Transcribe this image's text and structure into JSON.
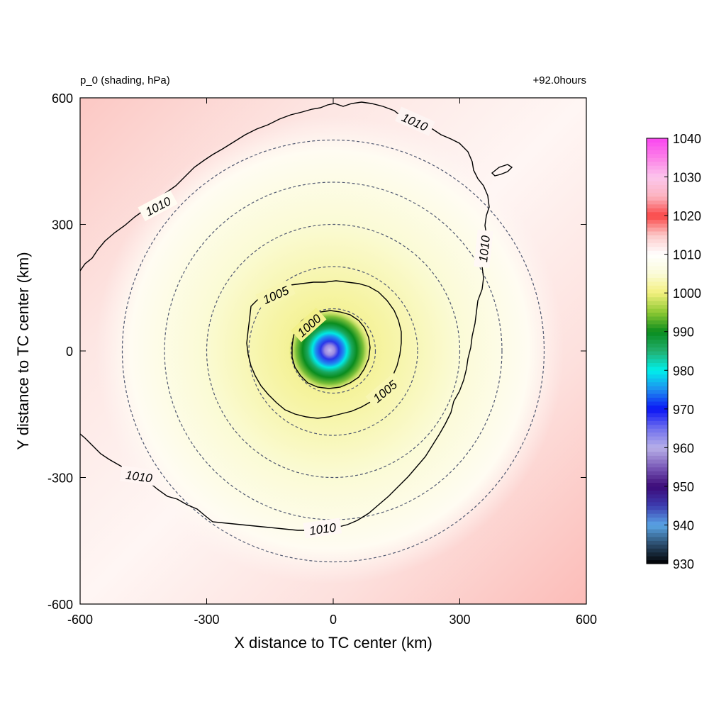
{
  "chart_data": {
    "type": "heatmap",
    "title_left": "p_0 (shading, hPa)",
    "title_right": "+92.0hours",
    "xlabel": "X distance to TC center (km)",
    "ylabel": "Y distance to TC center (km)",
    "xlim": [
      -600,
      600
    ],
    "ylim": [
      -600,
      600
    ],
    "xticks": [
      "-600",
      "-300",
      "0",
      "300",
      "600"
    ],
    "yticks": [
      "600",
      "300",
      "0",
      "-300",
      "-600"
    ],
    "colorbar": {
      "min": 930,
      "max": 1040,
      "ticks": [
        "1040",
        "1030",
        "1020",
        "1010",
        "1000",
        "990",
        "980",
        "970",
        "960",
        "950",
        "940",
        "930"
      ],
      "stops": [
        {
          "v": 930,
          "c": "#000000"
        },
        {
          "v": 935,
          "c": "#2a4a6a"
        },
        {
          "v": 940,
          "c": "#5aa6e6"
        },
        {
          "v": 945,
          "c": "#3c3cb0"
        },
        {
          "v": 950,
          "c": "#3c0a78"
        },
        {
          "v": 955,
          "c": "#7a5ab8"
        },
        {
          "v": 960,
          "c": "#b8b0e8"
        },
        {
          "v": 965,
          "c": "#7070ee"
        },
        {
          "v": 970,
          "c": "#0a14f5"
        },
        {
          "v": 975,
          "c": "#1e8cf0"
        },
        {
          "v": 980,
          "c": "#00f0ec"
        },
        {
          "v": 985,
          "c": "#22b070"
        },
        {
          "v": 990,
          "c": "#0a8c1e"
        },
        {
          "v": 995,
          "c": "#8cc832"
        },
        {
          "v": 1000,
          "c": "#f2f07c"
        },
        {
          "v": 1005,
          "c": "#fbfbd8"
        },
        {
          "v": 1010,
          "c": "#ffffff"
        },
        {
          "v": 1015,
          "c": "#fcc8c8"
        },
        {
          "v": 1020,
          "c": "#fa4646"
        },
        {
          "v": 1025,
          "c": "#fcb4c0"
        },
        {
          "v": 1030,
          "c": "#fcc6ec"
        },
        {
          "v": 1035,
          "c": "#fc80e8"
        },
        {
          "v": 1040,
          "c": "#fa46f0"
        }
      ]
    },
    "center": {
      "x": 0,
      "y": 0,
      "min_pressure": 960
    },
    "contour_labels": [
      "1010",
      "1010",
      "1010",
      "1010",
      "1005",
      "1005",
      "1000"
    ],
    "dashed_radii_km": [
      100,
      200,
      300,
      400,
      500
    ]
  }
}
